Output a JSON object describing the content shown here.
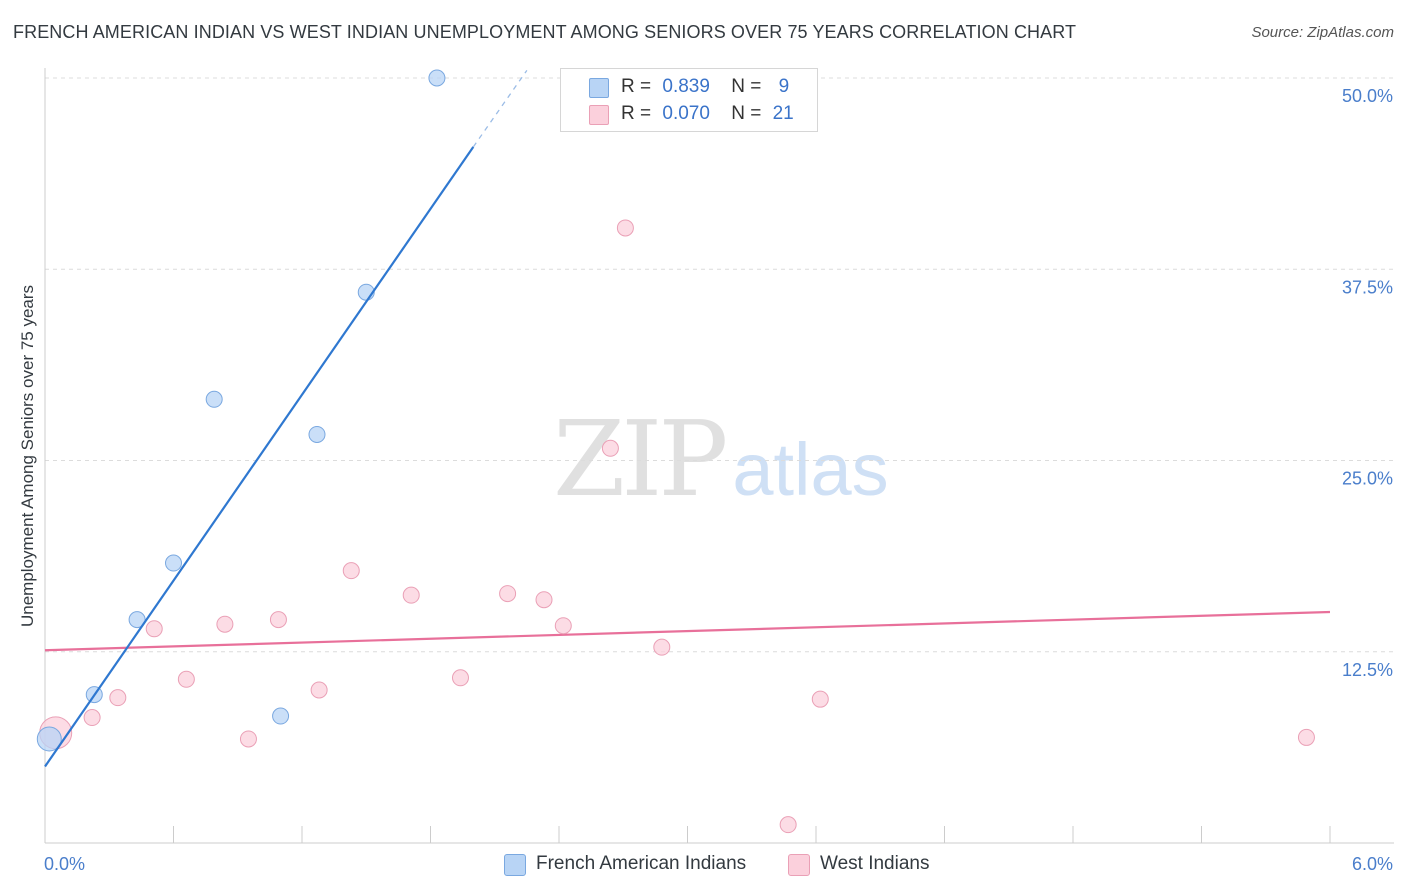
{
  "header": {
    "title": "FRENCH AMERICAN INDIAN VS WEST INDIAN UNEMPLOYMENT AMONG SENIORS OVER 75 YEARS CORRELATION CHART",
    "source": "Source: ZipAtlas.com"
  },
  "watermark": {
    "zip": "ZIP",
    "atlas": "atlas"
  },
  "legend": {
    "r_label": "R =",
    "n_label": "N =",
    "series1": {
      "r": "0.839",
      "n": "9"
    },
    "series2": {
      "r": "0.070",
      "n": "21"
    }
  },
  "bottom_legend": {
    "series1": "French American Indians",
    "series2": "West Indians"
  },
  "colors": {
    "blue_fill": "#b8d4f5",
    "blue_stroke": "#7aa8e0",
    "blue_line": "#2f78d0",
    "pink_fill": "#fbd0dc",
    "pink_stroke": "#eaa0b6",
    "pink_line": "#e8709a",
    "tick_text": "#4a7ecb"
  },
  "chart_data": {
    "type": "scatter",
    "title": "FRENCH AMERICAN INDIAN VS WEST INDIAN UNEMPLOYMENT AMONG SENIORS OVER 75 YEARS CORRELATION CHART",
    "xlabel": "",
    "ylabel": "Unemployment Among Seniors over 75 years",
    "xlim": [
      0,
      6
    ],
    "ylim": [
      0,
      50
    ],
    "x_tick_labels": [
      "0.0%",
      "6.0%"
    ],
    "y_ticks": [
      12.5,
      25.0,
      37.5,
      50.0
    ],
    "y_tick_labels": [
      "12.5%",
      "25.0%",
      "37.5%",
      "50.0%"
    ],
    "grid": true,
    "series": [
      {
        "name": "French American Indians",
        "color": "blue",
        "r": 0.839,
        "n": 9,
        "points": [
          {
            "x": 0.02,
            "y": 6.8,
            "size": "large"
          },
          {
            "x": 0.23,
            "y": 9.7
          },
          {
            "x": 0.43,
            "y": 14.6
          },
          {
            "x": 0.6,
            "y": 18.3
          },
          {
            "x": 0.79,
            "y": 29.0
          },
          {
            "x": 1.1,
            "y": 8.3
          },
          {
            "x": 1.27,
            "y": 26.7
          },
          {
            "x": 1.5,
            "y": 36.0
          },
          {
            "x": 1.83,
            "y": 50.0
          }
        ],
        "trend": {
          "x_start": 0.0,
          "y_start": 5.0,
          "x_end": 2.0,
          "y_end": 45.5,
          "dash_x_end": 2.25,
          "dash_y_end": 50.5
        }
      },
      {
        "name": "West Indians",
        "color": "pink",
        "r": 0.07,
        "n": 21,
        "points": [
          {
            "x": 0.05,
            "y": 7.2,
            "size": "large"
          },
          {
            "x": 0.22,
            "y": 8.2
          },
          {
            "x": 0.34,
            "y": 9.5
          },
          {
            "x": 0.51,
            "y": 14.0
          },
          {
            "x": 0.66,
            "y": 10.7
          },
          {
            "x": 0.84,
            "y": 14.3
          },
          {
            "x": 0.95,
            "y": 6.8
          },
          {
            "x": 1.09,
            "y": 14.6
          },
          {
            "x": 1.28,
            "y": 10.0
          },
          {
            "x": 1.43,
            "y": 17.8
          },
          {
            "x": 1.71,
            "y": 16.2
          },
          {
            "x": 1.94,
            "y": 10.8
          },
          {
            "x": 2.16,
            "y": 16.3
          },
          {
            "x": 2.33,
            "y": 15.9
          },
          {
            "x": 2.42,
            "y": 14.2
          },
          {
            "x": 2.64,
            "y": 25.8
          },
          {
            "x": 2.71,
            "y": 40.2
          },
          {
            "x": 2.88,
            "y": 12.8
          },
          {
            "x": 3.47,
            "y": 1.2
          },
          {
            "x": 3.62,
            "y": 9.4
          },
          {
            "x": 5.89,
            "y": 6.9
          }
        ],
        "trend": {
          "x_start": 0.0,
          "y_start": 12.6,
          "x_end": 6.0,
          "y_end": 15.1
        }
      }
    ]
  }
}
